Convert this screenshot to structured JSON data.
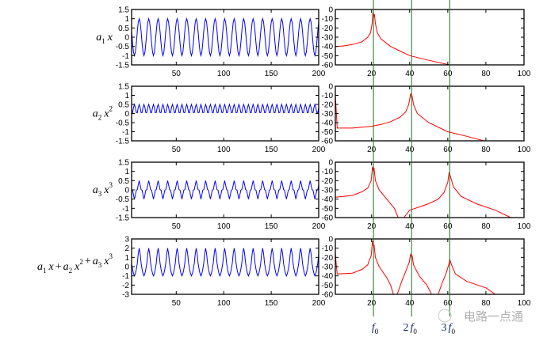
{
  "colors": {
    "time_signal": "#0000ff",
    "spectrum": "#ff0000",
    "marker_lines": "#1f6e1f",
    "axes": "#000000"
  },
  "watermark": "电路一点通",
  "chart_data": [
    {
      "type": "line",
      "panel": "time",
      "row": 0,
      "label": {
        "terms": [
          {
            "a": "a",
            "sub": "1",
            "x": "x",
            "sup": ""
          }
        ]
      },
      "formula": "cos",
      "xlim": [
        3,
        200
      ],
      "ylim": [
        -1.5,
        1.5
      ],
      "period": 10,
      "xticks": [
        "50",
        "100",
        "150",
        "200"
      ],
      "xtick_values": [
        50,
        100,
        150,
        200
      ],
      "yticks": [
        "1.5",
        "1",
        "0.5",
        "0",
        "-0.5",
        "-1",
        "-1.5"
      ],
      "ytick_values": [
        1.5,
        1,
        0.5,
        0,
        -0.5,
        -1,
        -1.5
      ]
    },
    {
      "type": "line",
      "panel": "time",
      "row": 1,
      "label": {
        "terms": [
          {
            "a": "a",
            "sub": "2",
            "x": "x",
            "sup": "2"
          }
        ]
      },
      "formula": "square",
      "xlim": [
        3,
        200
      ],
      "ylim": [
        -1.5,
        1.5
      ],
      "period": 10,
      "xticks": [
        "50",
        "100",
        "150",
        "200"
      ],
      "xtick_values": [
        50,
        100,
        150,
        200
      ],
      "yticks": [
        "1.5",
        "1",
        "0.5",
        "0",
        "-0.5",
        "-1",
        "-1.5"
      ],
      "ytick_values": [
        1.5,
        1,
        0.5,
        0,
        -0.5,
        -1,
        -1.5
      ]
    },
    {
      "type": "line",
      "panel": "time",
      "row": 2,
      "label": {
        "terms": [
          {
            "a": "a",
            "sub": "3",
            "x": "x",
            "sup": "3"
          }
        ]
      },
      "formula": "cube",
      "xlim": [
        3,
        200
      ],
      "ylim": [
        -1.5,
        1.5
      ],
      "period": 10,
      "xticks": [
        "50",
        "100",
        "150",
        "200"
      ],
      "xtick_values": [
        50,
        100,
        150,
        200
      ],
      "yticks": [
        "1.5",
        "1",
        "0.5",
        "0",
        "-0.5",
        "-1",
        "-1.5"
      ],
      "ytick_values": [
        1.5,
        1,
        0.5,
        0,
        -0.5,
        -1,
        -1.5
      ]
    },
    {
      "type": "line",
      "panel": "time",
      "row": 3,
      "label": {
        "terms": [
          {
            "a": "a",
            "sub": "1",
            "x": "x",
            "sup": ""
          },
          {
            "a": "a",
            "sub": "2",
            "x": "x",
            "sup": "2"
          },
          {
            "a": "a",
            "sub": "3",
            "x": "x",
            "sup": "3"
          }
        ],
        "joiner": "+"
      },
      "formula": "sum",
      "xlim": [
        3,
        200
      ],
      "ylim": [
        -3,
        3
      ],
      "period": 10,
      "xticks": [
        "50",
        "100",
        "150",
        "200"
      ],
      "xtick_values": [
        50,
        100,
        150,
        200
      ],
      "yticks": [
        "3",
        "2",
        "1",
        "0",
        "-1",
        "-2",
        "-3"
      ],
      "ytick_values": [
        3,
        2,
        1,
        0,
        -1,
        -2,
        -3
      ]
    },
    {
      "type": "line",
      "panel": "spectrum",
      "row": 0,
      "xlim": [
        1,
        100
      ],
      "ylim": [
        -60,
        0
      ],
      "xticks": [
        "20",
        "40",
        "60",
        "80",
        "100"
      ],
      "xtick_values": [
        20,
        40,
        60,
        80,
        100
      ],
      "yticks": [
        "0",
        "-10",
        "-20",
        "-30",
        "-40",
        "-50",
        "-60"
      ],
      "ytick_values": [
        0,
        -10,
        -20,
        -30,
        -40,
        -50,
        -60
      ],
      "points": [
        [
          1,
          -40
        ],
        [
          5,
          -39.5
        ],
        [
          10,
          -38
        ],
        [
          15,
          -35
        ],
        [
          18,
          -30
        ],
        [
          19.5,
          -25
        ],
        [
          20.3,
          -15
        ],
        [
          20.7,
          -3
        ],
        [
          21.2,
          -8
        ],
        [
          21.5,
          -5
        ],
        [
          22,
          -15
        ],
        [
          23,
          -25
        ],
        [
          25,
          -32
        ],
        [
          30,
          -40
        ],
        [
          35,
          -45
        ],
        [
          40,
          -50
        ],
        [
          50,
          -55
        ],
        [
          61,
          -60
        ]
      ]
    },
    {
      "type": "line",
      "panel": "spectrum",
      "row": 1,
      "xlim": [
        1,
        100
      ],
      "ylim": [
        -60,
        0
      ],
      "xticks": [
        "20",
        "40",
        "60",
        "80",
        "100"
      ],
      "xtick_values": [
        20,
        40,
        60,
        80,
        100
      ],
      "yticks": [
        "0",
        "-10",
        "-20",
        "-30",
        "-40",
        "-50",
        "-60"
      ],
      "ytick_values": [
        0,
        -10,
        -20,
        -30,
        -40,
        -50,
        -60
      ],
      "points": [
        [
          1,
          -10
        ],
        [
          1.5,
          -28
        ],
        [
          2,
          -46
        ],
        [
          10,
          -46
        ],
        [
          20,
          -44
        ],
        [
          25,
          -42
        ],
        [
          30,
          -39
        ],
        [
          35,
          -34
        ],
        [
          38,
          -28
        ],
        [
          39.5,
          -20
        ],
        [
          40.5,
          -8
        ],
        [
          41,
          -12
        ],
        [
          41.3,
          -11
        ],
        [
          42,
          -20
        ],
        [
          44,
          -30
        ],
        [
          50,
          -40
        ],
        [
          60,
          -50
        ],
        [
          70,
          -55
        ],
        [
          79,
          -60
        ]
      ]
    },
    {
      "type": "line",
      "panel": "spectrum",
      "row": 2,
      "xlim": [
        1,
        100
      ],
      "ylim": [
        -60,
        0
      ],
      "xticks": [
        "20",
        "40",
        "60",
        "80",
        "100"
      ],
      "xtick_values": [
        20,
        40,
        60,
        80,
        100
      ],
      "yticks": [
        "0",
        "-10",
        "-20",
        "-30",
        "-40",
        "-50",
        "-60"
      ],
      "ytick_values": [
        0,
        -10,
        -20,
        -30,
        -40,
        -50,
        -60
      ],
      "points": [
        [
          1,
          -38
        ],
        [
          10,
          -36
        ],
        [
          15,
          -32
        ],
        [
          18,
          -28
        ],
        [
          19.8,
          -20
        ],
        [
          20.5,
          -5
        ],
        [
          21,
          -10
        ],
        [
          21.3,
          -6
        ],
        [
          22,
          -20
        ],
        [
          24,
          -30
        ],
        [
          28,
          -40
        ],
        [
          32,
          -50
        ],
        [
          34,
          -60
        ],
        null,
        [
          37,
          -60
        ],
        [
          40,
          -52
        ],
        [
          50,
          -45
        ],
        [
          55,
          -40
        ],
        [
          58,
          -33
        ],
        [
          60,
          -22
        ],
        [
          60.7,
          -11
        ],
        [
          61.5,
          -16
        ],
        [
          63,
          -27
        ],
        [
          67,
          -37
        ],
        [
          75,
          -45
        ],
        [
          85,
          -52
        ],
        [
          93,
          -60
        ]
      ]
    },
    {
      "type": "line",
      "panel": "spectrum",
      "row": 3,
      "xlim": [
        1,
        100
      ],
      "ylim": [
        -60,
        0
      ],
      "xticks": [
        "20",
        "40",
        "60",
        "80",
        "100"
      ],
      "xtick_values": [
        20,
        40,
        60,
        80,
        100
      ],
      "yticks": [
        "0",
        "-10",
        "-20",
        "-30",
        "-40",
        "-50",
        "-60"
      ],
      "ytick_values": [
        0,
        -10,
        -20,
        -30,
        -40,
        -50,
        -60
      ],
      "points": [
        [
          1,
          -15
        ],
        [
          1.5,
          -28
        ],
        [
          2,
          -38
        ],
        [
          10,
          -37
        ],
        [
          15,
          -33
        ],
        [
          18,
          -28
        ],
        [
          19.8,
          -18
        ],
        [
          20.5,
          -2
        ],
        [
          21,
          -8
        ],
        [
          21.3,
          -6
        ],
        [
          22,
          -20
        ],
        [
          24,
          -30
        ],
        [
          28,
          -42
        ],
        [
          30,
          -50
        ],
        [
          31.5,
          -60
        ],
        null,
        [
          33.5,
          -60
        ],
        [
          36,
          -45
        ],
        [
          38,
          -35
        ],
        [
          39.8,
          -25
        ],
        [
          40.5,
          -16
        ],
        [
          41,
          -20
        ],
        [
          41.3,
          -18
        ],
        [
          42,
          -28
        ],
        [
          45,
          -40
        ],
        [
          49,
          -50
        ],
        [
          51.5,
          -60
        ],
        null,
        [
          55,
          -60
        ],
        [
          57,
          -48
        ],
        [
          59,
          -38
        ],
        [
          60.5,
          -28
        ],
        [
          61,
          -22
        ],
        [
          62,
          -28
        ],
        [
          64,
          -38
        ],
        [
          70,
          -46
        ],
        [
          80,
          -53
        ],
        [
          85,
          -60
        ]
      ]
    }
  ],
  "markers": [
    {
      "x": 21,
      "label": {
        "coef": "",
        "f": "f",
        "sub": "0"
      }
    },
    {
      "x": 41,
      "label": {
        "coef": "2",
        "f": "f",
        "sub": "0"
      }
    },
    {
      "x": 61,
      "label": {
        "coef": "3",
        "f": "f",
        "sub": "0"
      }
    }
  ]
}
